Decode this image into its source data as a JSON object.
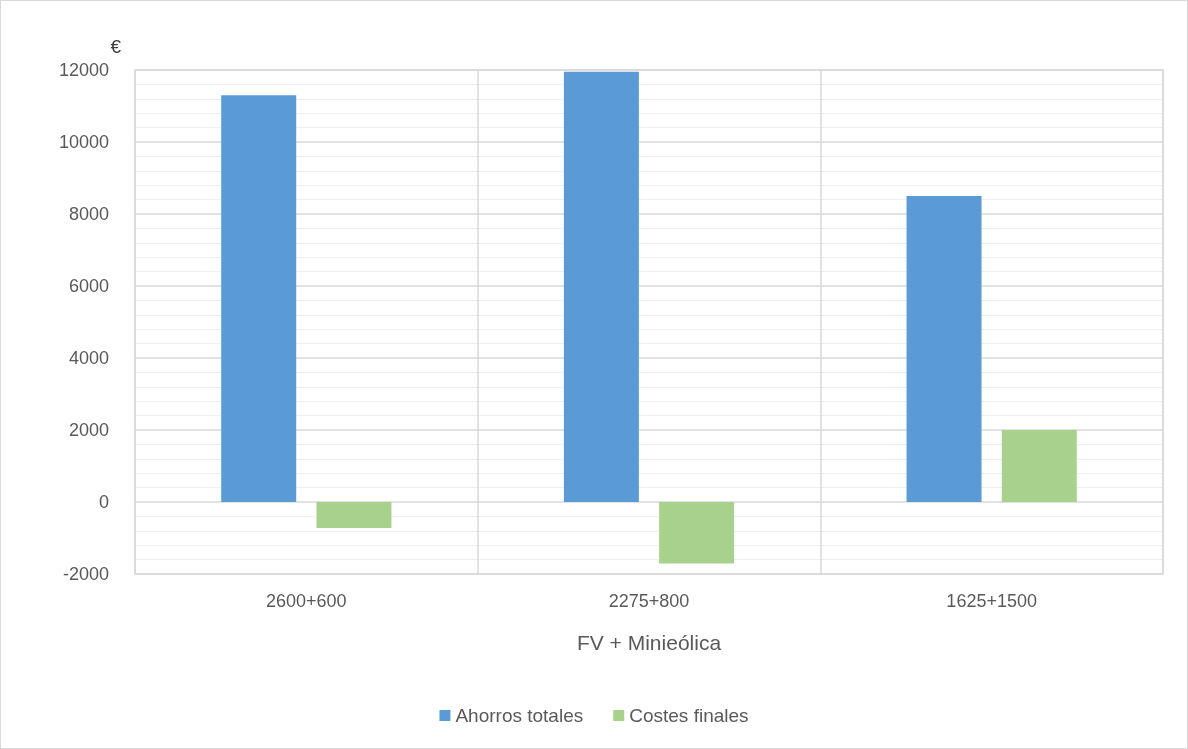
{
  "chart_data": {
    "type": "bar",
    "ylabel": "€",
    "xlabel": "FV + Minieólica",
    "categories": [
      "2600+600",
      "2275+800",
      "1625+1500"
    ],
    "series": [
      {
        "name": "Ahorros totales",
        "color": "#5b9bd5",
        "values": [
          11300,
          11950,
          8500
        ]
      },
      {
        "name": "Costes finales",
        "color": "#a9d18e",
        "values": [
          -720,
          -1710,
          2000
        ]
      }
    ],
    "ylim": [
      -2000,
      12000
    ],
    "yticks": [
      -2000,
      0,
      2000,
      4000,
      6000,
      8000,
      10000,
      12000
    ],
    "grid": true,
    "legend": "bottom"
  }
}
